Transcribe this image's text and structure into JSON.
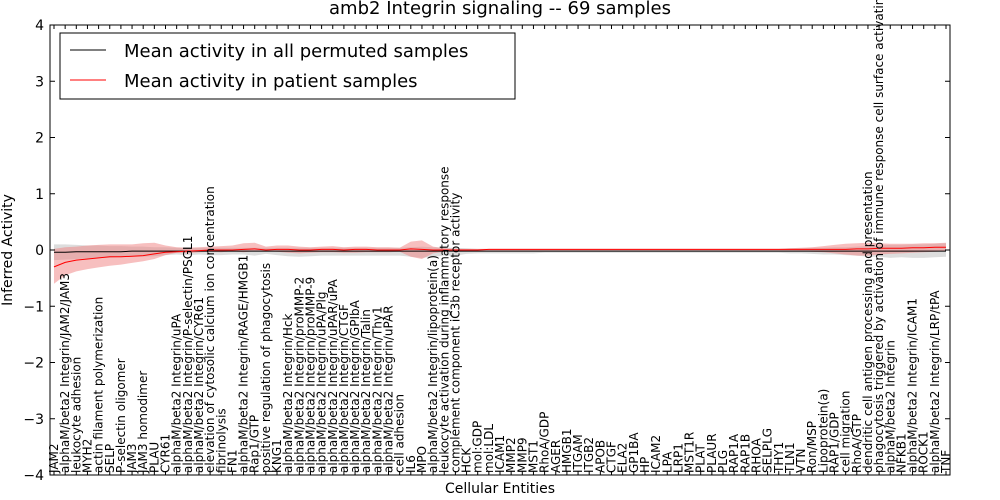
{
  "chart_data": {
    "type": "line",
    "title": "amb2 Integrin signaling -- 69 samples",
    "xlabel": "Cellular Entities",
    "ylabel": "Inferred Activity",
    "ylim": [
      -4,
      4
    ],
    "yticks": [
      -4,
      -3,
      -2,
      -1,
      0,
      1,
      2,
      3,
      4
    ],
    "legend_position": "top-left",
    "categories": [
      "JAM2",
      "alphaM/beta2 Integrin/JAM2/JAM3",
      "leukocyte adhesion",
      "MYH2",
      "actin filament polymerization",
      "SELP",
      "P-selectin oligomer",
      "JAM3",
      "JAM3 homodimer",
      "PLAU",
      "CYR61",
      "alphaM/beta2 Integrin/uPA",
      "alphaM/beta2 Integrin/P-selectin/PSGL1",
      "alphaM/beta2 Integrin/CYR61",
      "elevation of cytosolic calcium ion concentration",
      "fibrinolysis",
      "FN1",
      "alphaM/beta2 Integrin/RAGE/HMGB1",
      "Rap1/GTP",
      "positive regulation of phagocytosis",
      "KNG1",
      "alphaM/beta2 Integrin/Hck",
      "alphaM/beta2 Integrin/proMMP-2",
      "alphaM/beta2 Integrin/proMMP-9",
      "alphaM/beta2 Integrin/uPA/Plg",
      "alphaM/beta2 Integrin/uPAR/uPA",
      "alphaM/beta2 Integrin/CTGF",
      "alphaM/beta2 Integrin/GPIbA",
      "alphaM/beta2 Integrin/Talin",
      "alphaM/beta2 Integrin/Thy1",
      "alphaM/beta2 Integrin/uPAR",
      "cell adhesion",
      "IL6",
      "MPO",
      "alphaM/beta2 Integrin/lipoprotein(a)",
      "leukocyte activation during inflammatory response",
      "complement component iC3b receptor activity",
      "HCK",
      "mol:GDP",
      "mol:LDL",
      "ICAM1",
      "MMP2",
      "MMP9",
      "MST1",
      "RhoA/GDP",
      "AGER",
      "HMGB1",
      "ITGAM",
      "ITGB2",
      "APOB",
      "CTGF",
      "ELA2",
      "GP1BA",
      "HP",
      "ICAM2",
      "LPA",
      "LRP1",
      "MST1R",
      "PLAT",
      "PLAUR",
      "PLG",
      "RAP1A",
      "RAP1B",
      "RHOA",
      "SELPLG",
      "THY1",
      "TLN1",
      "VTN",
      "Ron/MSP",
      "Lipoprotein(a)",
      "RAP1/GDP",
      "cell migration",
      "RhoA/GTP",
      "dendritic cell antigen processing and presentation",
      "phagocytosis triggered by activation of immune response cell surface activating receptor",
      "alphaM/beta2 Integrin",
      "NFKB1",
      "alphaM/beta2 Integrin/ICAM1",
      "ROCK1",
      "alphaM/beta2 Integrin/LRP/tPA",
      "TNF"
    ],
    "series": [
      {
        "name": "Mean activity in all permuted samples",
        "color": "#000000",
        "band_color": "#bbbbbb",
        "values": [
          -0.04,
          -0.04,
          -0.03,
          -0.03,
          -0.03,
          -0.03,
          -0.03,
          -0.02,
          -0.02,
          -0.02,
          -0.02,
          -0.02,
          -0.02,
          -0.02,
          -0.02,
          -0.02,
          -0.02,
          -0.02,
          -0.02,
          -0.02,
          -0.02,
          -0.02,
          -0.02,
          -0.02,
          -0.02,
          -0.02,
          -0.02,
          -0.02,
          -0.02,
          -0.02,
          -0.02,
          -0.02,
          -0.02,
          -0.02,
          -0.02,
          -0.02,
          -0.02,
          -0.02,
          -0.02,
          -0.02,
          -0.02,
          -0.02,
          -0.02,
          -0.02,
          -0.02,
          -0.02,
          -0.02,
          -0.02,
          -0.02,
          -0.02,
          -0.02,
          -0.02,
          -0.02,
          -0.02,
          -0.02,
          -0.02,
          -0.02,
          -0.02,
          -0.02,
          -0.02,
          -0.02,
          -0.02,
          -0.02,
          -0.02,
          -0.02,
          -0.02,
          -0.02,
          -0.02,
          -0.02,
          -0.02,
          -0.02,
          -0.02,
          -0.02,
          -0.02,
          -0.02,
          -0.02,
          -0.02,
          -0.02,
          -0.02,
          -0.02,
          -0.02
        ],
        "lower": [
          -0.18,
          -0.17,
          -0.16,
          -0.15,
          -0.14,
          -0.14,
          -0.13,
          -0.12,
          -0.12,
          -0.11,
          -0.09,
          -0.08,
          -0.09,
          -0.08,
          -0.09,
          -0.09,
          -0.08,
          -0.08,
          -0.1,
          -0.07,
          -0.09,
          -0.11,
          -0.12,
          -0.11,
          -0.1,
          -0.1,
          -0.1,
          -0.1,
          -0.1,
          -0.1,
          -0.1,
          -0.1,
          -0.12,
          -0.14,
          -0.12,
          -0.1,
          -0.1,
          -0.07,
          -0.06,
          -0.06,
          -0.06,
          -0.06,
          -0.06,
          -0.06,
          -0.05,
          -0.05,
          -0.05,
          -0.05,
          -0.05,
          -0.05,
          -0.05,
          -0.05,
          -0.05,
          -0.05,
          -0.05,
          -0.05,
          -0.05,
          -0.05,
          -0.05,
          -0.05,
          -0.05,
          -0.05,
          -0.05,
          -0.05,
          -0.05,
          -0.05,
          -0.06,
          -0.06,
          -0.07,
          -0.08,
          -0.08,
          -0.09,
          -0.1,
          -0.12,
          -0.12,
          -0.14,
          -0.13,
          -0.14,
          -0.14,
          -0.13,
          -0.12
        ],
        "upper": [
          0.1,
          0.1,
          0.09,
          0.08,
          0.08,
          0.07,
          0.07,
          0.06,
          0.06,
          0.05,
          0.05,
          0.04,
          0.04,
          0.04,
          0.04,
          0.04,
          0.04,
          0.04,
          0.04,
          0.04,
          0.04,
          0.04,
          0.04,
          0.04,
          0.04,
          0.04,
          0.04,
          0.04,
          0.04,
          0.04,
          0.04,
          0.04,
          0.05,
          0.06,
          0.05,
          0.04,
          0.04,
          0.03,
          0.02,
          0.02,
          0.02,
          0.02,
          0.02,
          0.02,
          0.02,
          0.02,
          0.02,
          0.02,
          0.02,
          0.02,
          0.02,
          0.02,
          0.02,
          0.02,
          0.02,
          0.02,
          0.02,
          0.02,
          0.02,
          0.02,
          0.02,
          0.02,
          0.02,
          0.02,
          0.02,
          0.02,
          0.03,
          0.03,
          0.04,
          0.04,
          0.05,
          0.05,
          0.06,
          0.07,
          0.08,
          0.09,
          0.09,
          0.1,
          0.1,
          0.11,
          0.12
        ]
      },
      {
        "name": "Mean activity in patient samples",
        "color": "#ff0000",
        "band_color": "#f08080",
        "values": [
          -0.3,
          -0.22,
          -0.18,
          -0.16,
          -0.14,
          -0.12,
          -0.12,
          -0.11,
          -0.1,
          -0.07,
          -0.04,
          -0.03,
          -0.02,
          -0.01,
          0.0,
          0.0,
          0.0,
          0.01,
          0.02,
          0.0,
          0.01,
          0.01,
          0.0,
          0.0,
          0.01,
          0.01,
          0.0,
          0.01,
          0.01,
          0.0,
          0.0,
          0.0,
          0.02,
          0.01,
          0.0,
          0.0,
          0.0,
          0.0,
          0.0,
          0.01,
          0.01,
          0.01,
          0.01,
          0.01,
          0.01,
          0.01,
          0.01,
          0.01,
          0.01,
          0.01,
          0.01,
          0.01,
          0.01,
          0.01,
          0.01,
          0.01,
          0.01,
          0.01,
          0.01,
          0.01,
          0.01,
          0.01,
          0.01,
          0.01,
          0.01,
          0.01,
          0.01,
          0.01,
          0.01,
          0.01,
          0.01,
          0.01,
          0.02,
          0.02,
          0.03,
          0.03,
          0.03,
          0.04,
          0.04,
          0.05,
          0.05
        ],
        "lower": [
          -0.6,
          -0.45,
          -0.38,
          -0.34,
          -0.31,
          -0.28,
          -0.26,
          -0.23,
          -0.2,
          -0.16,
          -0.09,
          -0.05,
          -0.06,
          -0.04,
          -0.03,
          -0.04,
          -0.02,
          -0.04,
          -0.02,
          -0.02,
          -0.03,
          -0.05,
          -0.06,
          -0.05,
          -0.04,
          -0.04,
          -0.05,
          -0.05,
          -0.04,
          -0.04,
          -0.04,
          -0.03,
          -0.12,
          -0.16,
          -0.06,
          -0.03,
          -0.02,
          -0.01,
          -0.01,
          -0.01,
          -0.01,
          -0.01,
          -0.01,
          -0.01,
          -0.01,
          -0.01,
          -0.01,
          -0.01,
          -0.01,
          -0.01,
          -0.01,
          -0.01,
          -0.01,
          -0.01,
          -0.01,
          -0.01,
          -0.01,
          -0.01,
          -0.01,
          -0.01,
          -0.01,
          -0.01,
          -0.01,
          -0.01,
          -0.01,
          -0.01,
          -0.01,
          -0.02,
          -0.03,
          -0.04,
          -0.06,
          -0.08,
          -0.1,
          -0.1,
          -0.08,
          -0.07,
          -0.06,
          -0.05,
          -0.04,
          -0.03,
          -0.02
        ],
        "upper": [
          0.02,
          0.05,
          0.06,
          0.08,
          0.09,
          0.1,
          0.1,
          0.1,
          0.12,
          0.13,
          0.08,
          0.05,
          0.04,
          0.05,
          0.06,
          0.07,
          0.08,
          0.12,
          0.13,
          0.06,
          0.08,
          0.08,
          0.06,
          0.05,
          0.06,
          0.07,
          0.05,
          0.06,
          0.06,
          0.05,
          0.05,
          0.04,
          0.15,
          0.17,
          0.06,
          0.03,
          0.02,
          0.02,
          0.02,
          0.02,
          0.02,
          0.02,
          0.02,
          0.02,
          0.02,
          0.02,
          0.02,
          0.02,
          0.02,
          0.02,
          0.02,
          0.02,
          0.02,
          0.02,
          0.02,
          0.02,
          0.02,
          0.02,
          0.02,
          0.02,
          0.02,
          0.02,
          0.02,
          0.02,
          0.02,
          0.02,
          0.03,
          0.04,
          0.05,
          0.07,
          0.09,
          0.11,
          0.12,
          0.13,
          0.12,
          0.11,
          0.11,
          0.11,
          0.12,
          0.12,
          0.13
        ]
      }
    ]
  }
}
